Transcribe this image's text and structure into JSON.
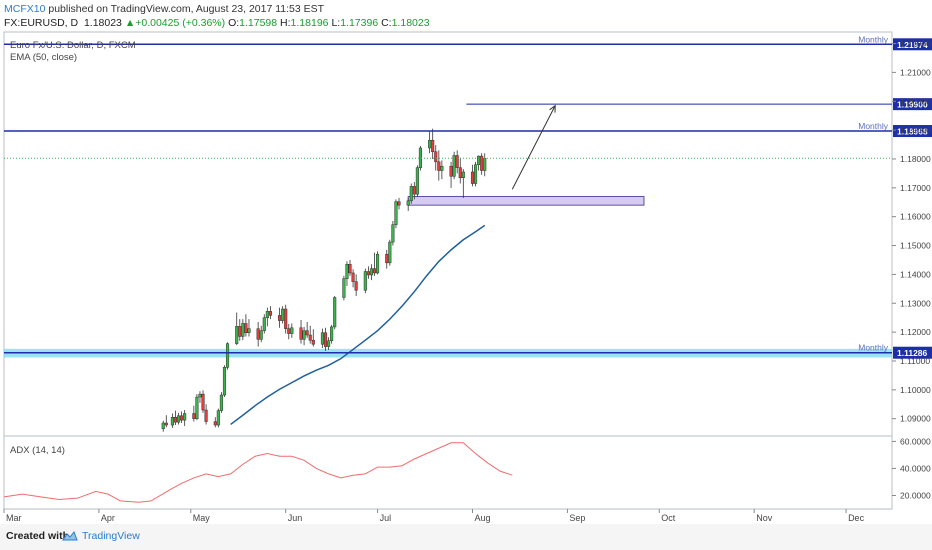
{
  "header": {
    "author": "MCFX10",
    "published_text": " published on TradingView.com, August 23, 2017 11:53 EST",
    "symbol": "FX:EURUSD, D",
    "last": "1.18023",
    "change": "+0.00425 (+0.36%)",
    "o_label": "O:",
    "o_value": "1.17598",
    "h_label": "H:",
    "h_value": "1.18196",
    "l_label": "L:",
    "l_value": "1.17396",
    "c_label": "C:",
    "c_value": "1.18023"
  },
  "legend": {
    "title": "Euro Fx/U.S. Dollar, D, FXCM",
    "ema": "EMA (50, close)",
    "adx": "ADX (14, 14)"
  },
  "footer": {
    "created": "Created with",
    "brand": "TradingView"
  },
  "colors": {
    "up": "#39b54a",
    "down": "#e83b3b",
    "ema": "#1f5f9e",
    "adx": "#ef6c6c",
    "level": "#1c2fa8",
    "zone": "#7fdcf0",
    "box": "#d6cdee"
  },
  "chart_data": [
    {
      "type": "candlestick",
      "title": "Euro Fx/U.S. Dollar, D, FXCM",
      "ylim": [
        1.084,
        1.224
      ],
      "y_ticks": [
        "1.09000",
        "1.10000",
        "1.11000",
        "1.12000",
        "1.13000",
        "1.14000",
        "1.15000",
        "1.16000",
        "1.17000",
        "1.18000",
        "1.19000",
        "1.20000",
        "1.21000",
        "1.22000"
      ],
      "x_ticks": [
        "Mar",
        "Apr",
        "May",
        "Jun",
        "Jul",
        "Aug",
        "Sep",
        "Oct",
        "Nov",
        "Dec"
      ],
      "x_tick_days": [
        0,
        31,
        61,
        92,
        122,
        153,
        184,
        214,
        245,
        275
      ],
      "x_range_days": [
        0,
        290
      ],
      "candles": [
        {
          "d": 52,
          "o": 1.0865,
          "h": 1.0893,
          "l": 1.0855,
          "c": 1.0885
        },
        {
          "d": 53,
          "o": 1.0885,
          "h": 1.0912,
          "l": 1.087,
          "c": 1.0878
        },
        {
          "d": 55,
          "o": 1.0878,
          "h": 1.0918,
          "l": 1.0868,
          "c": 1.0905
        },
        {
          "d": 56,
          "o": 1.0905,
          "h": 1.0928,
          "l": 1.0878,
          "c": 1.0888
        },
        {
          "d": 57,
          "o": 1.0888,
          "h": 1.092,
          "l": 1.088,
          "c": 1.091
        },
        {
          "d": 58,
          "o": 1.091,
          "h": 1.0925,
          "l": 1.0885,
          "c": 1.0895
        },
        {
          "d": 59,
          "o": 1.0895,
          "h": 1.093,
          "l": 1.0875,
          "c": 1.0918
        },
        {
          "d": 62,
          "o": 1.0918,
          "h": 1.0945,
          "l": 1.089,
          "c": 1.09
        },
        {
          "d": 63,
          "o": 1.09,
          "h": 1.0985,
          "l": 1.0895,
          "c": 1.0975
        },
        {
          "d": 64,
          "o": 1.0975,
          "h": 1.0995,
          "l": 1.0955,
          "c": 1.0985
        },
        {
          "d": 65,
          "o": 1.0985,
          "h": 1.0998,
          "l": 1.092,
          "c": 1.093
        },
        {
          "d": 66,
          "o": 1.093,
          "h": 1.095,
          "l": 1.088,
          "c": 1.089
        },
        {
          "d": 69,
          "o": 1.089,
          "h": 1.0905,
          "l": 1.087,
          "c": 1.0878
        },
        {
          "d": 70,
          "o": 1.0878,
          "h": 1.0935,
          "l": 1.087,
          "c": 1.0928
        },
        {
          "d": 71,
          "o": 1.0928,
          "h": 1.0992,
          "l": 1.092,
          "c": 1.0982
        },
        {
          "d": 72,
          "o": 1.0982,
          "h": 1.1085,
          "l": 1.0975,
          "c": 1.1078
        },
        {
          "d": 73,
          "o": 1.1078,
          "h": 1.1165,
          "l": 1.107,
          "c": 1.116
        },
        {
          "d": 76,
          "o": 1.116,
          "h": 1.1268,
          "l": 1.1155,
          "c": 1.122
        },
        {
          "d": 77,
          "o": 1.122,
          "h": 1.1245,
          "l": 1.117,
          "c": 1.1185
        },
        {
          "d": 78,
          "o": 1.1185,
          "h": 1.1245,
          "l": 1.1172,
          "c": 1.123
        },
        {
          "d": 79,
          "o": 1.123,
          "h": 1.1262,
          "l": 1.1185,
          "c": 1.1198
        },
        {
          "d": 80,
          "o": 1.1198,
          "h": 1.1245,
          "l": 1.1185,
          "c": 1.1212
        },
        {
          "d": 83,
          "o": 1.1212,
          "h": 1.1235,
          "l": 1.115,
          "c": 1.1175
        },
        {
          "d": 84,
          "o": 1.1175,
          "h": 1.1222,
          "l": 1.1165,
          "c": 1.1205
        },
        {
          "d": 85,
          "o": 1.1205,
          "h": 1.1262,
          "l": 1.1195,
          "c": 1.125
        },
        {
          "d": 86,
          "o": 1.125,
          "h": 1.1285,
          "l": 1.122,
          "c": 1.1272
        },
        {
          "d": 87,
          "o": 1.1272,
          "h": 1.129,
          "l": 1.1245,
          "c": 1.1258
        },
        {
          "d": 90,
          "o": 1.1258,
          "h": 1.1285,
          "l": 1.1215,
          "c": 1.124
        },
        {
          "d": 91,
          "o": 1.124,
          "h": 1.129,
          "l": 1.123,
          "c": 1.128
        },
        {
          "d": 92,
          "o": 1.128,
          "h": 1.1295,
          "l": 1.1195,
          "c": 1.1212
        },
        {
          "d": 93,
          "o": 1.1212,
          "h": 1.1228,
          "l": 1.1175,
          "c": 1.1195
        },
        {
          "d": 94,
          "o": 1.1195,
          "h": 1.123,
          "l": 1.118,
          "c": 1.1215
        },
        {
          "d": 97,
          "o": 1.1215,
          "h": 1.1242,
          "l": 1.116,
          "c": 1.1175
        },
        {
          "d": 98,
          "o": 1.1175,
          "h": 1.1218,
          "l": 1.1155,
          "c": 1.1205
        },
        {
          "d": 99,
          "o": 1.1205,
          "h": 1.1235,
          "l": 1.118,
          "c": 1.119
        },
        {
          "d": 100,
          "o": 1.119,
          "h": 1.1222,
          "l": 1.116,
          "c": 1.1172
        },
        {
          "d": 101,
          "o": 1.1172,
          "h": 1.121,
          "l": 1.115,
          "c": 1.1158
        },
        {
          "d": 104,
          "o": 1.1158,
          "h": 1.1212,
          "l": 1.1145,
          "c": 1.1198
        },
        {
          "d": 105,
          "o": 1.1198,
          "h": 1.1215,
          "l": 1.1135,
          "c": 1.115
        },
        {
          "d": 106,
          "o": 1.115,
          "h": 1.1182,
          "l": 1.1138,
          "c": 1.117
        },
        {
          "d": 107,
          "o": 1.117,
          "h": 1.1225,
          "l": 1.116,
          "c": 1.1218
        },
        {
          "d": 108,
          "o": 1.1218,
          "h": 1.1325,
          "l": 1.121,
          "c": 1.132
        },
        {
          "d": 111,
          "o": 1.132,
          "h": 1.1395,
          "l": 1.131,
          "c": 1.1385
        },
        {
          "d": 112,
          "o": 1.1385,
          "h": 1.1445,
          "l": 1.136,
          "c": 1.1435
        },
        {
          "d": 113,
          "o": 1.1435,
          "h": 1.145,
          "l": 1.1395,
          "c": 1.1405
        },
        {
          "d": 114,
          "o": 1.1405,
          "h": 1.1418,
          "l": 1.1355,
          "c": 1.1375
        },
        {
          "d": 115,
          "o": 1.1375,
          "h": 1.14,
          "l": 1.1325,
          "c": 1.1345
        },
        {
          "d": 118,
          "o": 1.1345,
          "h": 1.142,
          "l": 1.1335,
          "c": 1.141
        },
        {
          "d": 119,
          "o": 1.141,
          "h": 1.1428,
          "l": 1.1385,
          "c": 1.1398
        },
        {
          "d": 120,
          "o": 1.1398,
          "h": 1.1435,
          "l": 1.138,
          "c": 1.142
        },
        {
          "d": 121,
          "o": 1.142,
          "h": 1.1475,
          "l": 1.1395,
          "c": 1.1405
        },
        {
          "d": 122,
          "o": 1.1405,
          "h": 1.148,
          "l": 1.14,
          "c": 1.147
        },
        {
          "d": 125,
          "o": 1.147,
          "h": 1.1485,
          "l": 1.142,
          "c": 1.144
        },
        {
          "d": 126,
          "o": 1.144,
          "h": 1.152,
          "l": 1.143,
          "c": 1.1512
        },
        {
          "d": 127,
          "o": 1.1512,
          "h": 1.1585,
          "l": 1.15,
          "c": 1.1572
        },
        {
          "d": 128,
          "o": 1.1572,
          "h": 1.166,
          "l": 1.156,
          "c": 1.1652
        },
        {
          "d": 129,
          "o": 1.1652,
          "h": 1.1665,
          "l": 1.1625,
          "c": 1.164
        },
        {
          "d": 132,
          "o": 1.164,
          "h": 1.1665,
          "l": 1.162,
          "c": 1.1655
        },
        {
          "d": 133,
          "o": 1.1655,
          "h": 1.1715,
          "l": 1.1645,
          "c": 1.1705
        },
        {
          "d": 134,
          "o": 1.1705,
          "h": 1.172,
          "l": 1.166,
          "c": 1.1678
        },
        {
          "d": 135,
          "o": 1.1678,
          "h": 1.1778,
          "l": 1.1668,
          "c": 1.177
        },
        {
          "d": 136,
          "o": 1.177,
          "h": 1.1845,
          "l": 1.176,
          "c": 1.1838
        },
        {
          "d": 139,
          "o": 1.1838,
          "h": 1.1895,
          "l": 1.182,
          "c": 1.1865
        },
        {
          "d": 140,
          "o": 1.1865,
          "h": 1.1905,
          "l": 1.18,
          "c": 1.1825
        },
        {
          "d": 141,
          "o": 1.1825,
          "h": 1.1848,
          "l": 1.176,
          "c": 1.179
        },
        {
          "d": 142,
          "o": 1.179,
          "h": 1.183,
          "l": 1.1725,
          "c": 1.176
        },
        {
          "d": 143,
          "o": 1.176,
          "h": 1.1795,
          "l": 1.173,
          "c": 1.1775
        },
        {
          "d": 146,
          "o": 1.1775,
          "h": 1.179,
          "l": 1.17,
          "c": 1.174
        },
        {
          "d": 147,
          "o": 1.174,
          "h": 1.1825,
          "l": 1.173,
          "c": 1.1812
        },
        {
          "d": 148,
          "o": 1.1812,
          "h": 1.183,
          "l": 1.175,
          "c": 1.177
        },
        {
          "d": 149,
          "o": 1.177,
          "h": 1.1802,
          "l": 1.1715,
          "c": 1.1735
        },
        {
          "d": 150,
          "o": 1.1735,
          "h": 1.1765,
          "l": 1.1665,
          "c": 1.1755
        },
        {
          "d": 153,
          "o": 1.1755,
          "h": 1.178,
          "l": 1.1705,
          "c": 1.1715
        },
        {
          "d": 154,
          "o": 1.1715,
          "h": 1.179,
          "l": 1.1705,
          "c": 1.178
        },
        {
          "d": 155,
          "o": 1.178,
          "h": 1.1812,
          "l": 1.176,
          "c": 1.181
        },
        {
          "d": 156,
          "o": 1.181,
          "h": 1.182,
          "l": 1.1745,
          "c": 1.176
        },
        {
          "d": 157,
          "o": 1.176,
          "h": 1.182,
          "l": 1.174,
          "c": 1.1802
        }
      ],
      "ema_50": [
        [
          74,
          1.088
        ],
        [
          78,
          1.0912
        ],
        [
          82,
          1.0945
        ],
        [
          86,
          1.0975
        ],
        [
          90,
          1.1002
        ],
        [
          94,
          1.1025
        ],
        [
          98,
          1.1048
        ],
        [
          102,
          1.1068
        ],
        [
          106,
          1.1085
        ],
        [
          110,
          1.1108
        ],
        [
          114,
          1.114
        ],
        [
          118,
          1.1172
        ],
        [
          122,
          1.1205
        ],
        [
          126,
          1.1245
        ],
        [
          130,
          1.129
        ],
        [
          134,
          1.134
        ],
        [
          138,
          1.1395
        ],
        [
          142,
          1.1445
        ],
        [
          146,
          1.1485
        ],
        [
          150,
          1.152
        ],
        [
          154,
          1.1548
        ],
        [
          157,
          1.157
        ]
      ],
      "levels": [
        {
          "y": 1.21974,
          "label": "Monthly",
          "value": "1.21974"
        },
        {
          "y": 1.18968,
          "label": "Monthly",
          "value": "1.18968"
        },
        {
          "y": 1.11286,
          "label": "Monthly",
          "value": "1.11286"
        }
      ],
      "target_level": {
        "y": 1.199,
        "from_day": 151,
        "value": "1.19900"
      },
      "support_zone": [
        1.1112,
        1.1142
      ],
      "demand_box": {
        "from_day": 132,
        "to_day": 209,
        "y_low": 1.164,
        "y_high": 1.167
      },
      "arrow": {
        "from": [
          166,
          1.1695
        ],
        "to": [
          180,
          1.1985
        ]
      },
      "last_price": {
        "y": 1.18023
      }
    },
    {
      "type": "line",
      "title": "ADX (14, 14)",
      "ylim": [
        10,
        64
      ],
      "y_ticks": [
        "20.0000",
        "40.0000",
        "60.0000"
      ],
      "series": [
        {
          "values": [
            [
              0,
              19
            ],
            [
              6,
              21
            ],
            [
              12,
              19
            ],
            [
              18,
              17
            ],
            [
              24,
              18
            ],
            [
              30,
              23
            ],
            [
              34,
              21
            ],
            [
              38,
              16
            ],
            [
              44,
              15
            ],
            [
              48,
              16
            ],
            [
              54,
              24
            ],
            [
              58,
              29
            ],
            [
              62,
              33
            ],
            [
              66,
              36
            ],
            [
              70,
              34
            ],
            [
              74,
              36
            ],
            [
              78,
              43
            ],
            [
              82,
              49
            ],
            [
              86,
              51
            ],
            [
              90,
              49
            ],
            [
              94,
              49
            ],
            [
              98,
              46
            ],
            [
              102,
              40
            ],
            [
              106,
              36
            ],
            [
              110,
              33
            ],
            [
              114,
              35
            ],
            [
              118,
              36
            ],
            [
              122,
              41
            ],
            [
              126,
              41
            ],
            [
              130,
              42
            ],
            [
              134,
              47
            ],
            [
              140,
              53
            ],
            [
              146,
              59
            ],
            [
              150,
              59
            ],
            [
              154,
              51
            ],
            [
              158,
              44
            ],
            [
              162,
              38
            ],
            [
              166,
              35
            ]
          ]
        }
      ]
    }
  ]
}
